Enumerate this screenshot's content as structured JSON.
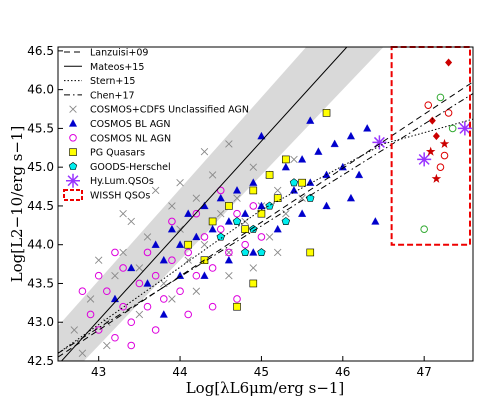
{
  "chart_data": {
    "type": "scatter",
    "title": "",
    "xlabel": "Log[λL6μm/erg s−1]",
    "ylabel": "Log[L2−10/erg s−1]",
    "xlim": [
      42.5,
      47.6
    ],
    "ylim": [
      42.5,
      46.55
    ],
    "xticks": [
      "43",
      "44",
      "45",
      "46",
      "47"
    ],
    "yticks": [
      "42.5",
      "43.0",
      "43.5",
      "44.0",
      "44.5",
      "45.0",
      "45.5",
      "46.0",
      "46.5"
    ],
    "grid": false,
    "legend_placement": "top-left",
    "relations": [
      {
        "name": "Lanzuisi+09",
        "style": "dashed",
        "points": [
          [
            42.5,
            42.55
          ],
          [
            47.6,
            46.1
          ]
        ]
      },
      {
        "name": "Mateos+15",
        "style": "solid",
        "points": [
          [
            42.5,
            42.45
          ],
          [
            46.05,
            46.55
          ]
        ]
      },
      {
        "name": "Stern+15",
        "style": "dotted",
        "points": [
          [
            42.5,
            42.6
          ],
          [
            45.0,
            44.45
          ],
          [
            46.5,
            45.3
          ],
          [
            47.6,
            45.62
          ]
        ]
      },
      {
        "name": "Chen+17",
        "style": "dashdot",
        "points": [
          [
            42.5,
            42.6
          ],
          [
            47.6,
            45.95
          ]
        ]
      }
    ],
    "band": {
      "points": [
        [
          42.5,
          42.15
        ],
        [
          46.5,
          46.55
        ],
        [
          45.55,
          46.55
        ],
        [
          42.5,
          42.95
        ]
      ]
    },
    "series": [
      {
        "name": "COSMOS+CDFS Unclassified AGN",
        "marker": "x",
        "color": "#888888",
        "points": [
          [
            42.7,
            42.9
          ],
          [
            42.9,
            43.3
          ],
          [
            43.1,
            43.0
          ],
          [
            43.2,
            43.6
          ],
          [
            43.3,
            43.9
          ],
          [
            43.5,
            43.7
          ],
          [
            43.4,
            44.3
          ],
          [
            43.6,
            44.1
          ],
          [
            43.8,
            43.5
          ],
          [
            43.9,
            44.5
          ],
          [
            44.0,
            44.2
          ],
          [
            44.1,
            43.8
          ],
          [
            44.2,
            44.6
          ],
          [
            44.3,
            44.0
          ],
          [
            44.4,
            44.9
          ],
          [
            44.5,
            44.4
          ],
          [
            44.6,
            43.9
          ],
          [
            44.7,
            44.6
          ],
          [
            44.8,
            44.3
          ],
          [
            44.9,
            45.0
          ],
          [
            45.0,
            44.5
          ],
          [
            45.1,
            44.1
          ],
          [
            45.2,
            44.7
          ],
          [
            45.3,
            44.4
          ],
          [
            45.4,
            45.1
          ],
          [
            45.5,
            44.6
          ],
          [
            43.0,
            43.8
          ],
          [
            43.3,
            44.4
          ],
          [
            43.7,
            44.7
          ],
          [
            44.0,
            44.8
          ],
          [
            44.3,
            45.2
          ],
          [
            44.6,
            45.3
          ],
          [
            42.8,
            42.6
          ],
          [
            43.1,
            42.7
          ],
          [
            43.5,
            43.1
          ],
          [
            43.9,
            43.3
          ],
          [
            44.2,
            43.4
          ],
          [
            44.6,
            43.6
          ],
          [
            44.9,
            43.7
          ],
          [
            45.2,
            43.9
          ]
        ]
      },
      {
        "name": "COSMOS BL AGN",
        "marker": "triangle",
        "color": "#0000cc",
        "points": [
          [
            43.2,
            43.3
          ],
          [
            43.4,
            43.7
          ],
          [
            43.6,
            43.5
          ],
          [
            43.7,
            44.0
          ],
          [
            43.8,
            43.8
          ],
          [
            43.9,
            44.2
          ],
          [
            44.0,
            44.0
          ],
          [
            44.1,
            44.4
          ],
          [
            44.2,
            44.1
          ],
          [
            44.3,
            44.5
          ],
          [
            44.4,
            44.2
          ],
          [
            44.5,
            44.6
          ],
          [
            44.6,
            44.3
          ],
          [
            44.7,
            44.7
          ],
          [
            44.8,
            44.4
          ],
          [
            44.9,
            44.8
          ],
          [
            45.0,
            44.5
          ],
          [
            45.1,
            44.9
          ],
          [
            45.2,
            44.6
          ],
          [
            45.3,
            45.0
          ],
          [
            45.4,
            44.7
          ],
          [
            45.5,
            45.1
          ],
          [
            45.6,
            44.8
          ],
          [
            45.7,
            45.2
          ],
          [
            45.8,
            44.9
          ],
          [
            45.9,
            45.3
          ],
          [
            46.0,
            45.0
          ],
          [
            46.1,
            45.4
          ],
          [
            46.2,
            44.9
          ],
          [
            46.3,
            45.5
          ],
          [
            44.3,
            43.6
          ],
          [
            44.6,
            43.8
          ],
          [
            44.9,
            43.9
          ],
          [
            45.2,
            44.2
          ],
          [
            45.5,
            44.4
          ],
          [
            45.8,
            44.5
          ],
          [
            46.1,
            44.6
          ],
          [
            46.4,
            44.3
          ],
          [
            45.0,
            45.4
          ],
          [
            45.6,
            45.6
          ],
          [
            44.0,
            43.6
          ],
          [
            43.8,
            43.1
          ]
        ]
      },
      {
        "name": "COSMOS NL AGN",
        "marker": "circle",
        "color": "#dd00dd",
        "points": [
          [
            42.9,
            43.1
          ],
          [
            43.0,
            42.9
          ],
          [
            43.1,
            43.4
          ],
          [
            43.2,
            42.8
          ],
          [
            43.3,
            43.2
          ],
          [
            43.4,
            43.0
          ],
          [
            43.5,
            43.5
          ],
          [
            43.6,
            43.2
          ],
          [
            43.7,
            43.6
          ],
          [
            43.8,
            43.3
          ],
          [
            43.9,
            43.8
          ],
          [
            44.0,
            43.4
          ],
          [
            44.1,
            43.9
          ],
          [
            44.2,
            43.6
          ],
          [
            44.3,
            44.1
          ],
          [
            44.4,
            43.7
          ],
          [
            44.5,
            44.2
          ],
          [
            44.6,
            43.9
          ],
          [
            44.7,
            44.4
          ],
          [
            44.8,
            44.0
          ],
          [
            44.9,
            44.5
          ],
          [
            45.0,
            44.1
          ],
          [
            43.3,
            43.7
          ],
          [
            43.6,
            43.9
          ],
          [
            43.9,
            44.3
          ],
          [
            44.2,
            44.4
          ],
          [
            44.5,
            44.7
          ],
          [
            43.0,
            43.6
          ],
          [
            43.4,
            42.7
          ],
          [
            43.7,
            42.9
          ],
          [
            44.1,
            43.1
          ],
          [
            44.4,
            43.2
          ],
          [
            44.7,
            43.3
          ],
          [
            43.2,
            43.9
          ],
          [
            42.8,
            43.4
          ]
        ]
      },
      {
        "name": "PG Quasars",
        "marker": "square",
        "color": "#ffff00",
        "points": [
          [
            44.1,
            44.0
          ],
          [
            44.3,
            43.8
          ],
          [
            44.4,
            44.3
          ],
          [
            44.6,
            44.5
          ],
          [
            44.8,
            44.2
          ],
          [
            44.9,
            44.7
          ],
          [
            45.0,
            44.4
          ],
          [
            45.1,
            44.9
          ],
          [
            45.2,
            44.6
          ],
          [
            45.3,
            45.1
          ],
          [
            45.5,
            44.8
          ],
          [
            45.8,
            45.7
          ],
          [
            45.6,
            43.9
          ],
          [
            44.7,
            43.2
          ],
          [
            44.9,
            43.5
          ]
        ]
      },
      {
        "name": "GOODS-Herschel",
        "marker": "pentagon",
        "color": "#00eeee",
        "points": [
          [
            44.5,
            44.1
          ],
          [
            44.7,
            44.3
          ],
          [
            44.9,
            44.2
          ],
          [
            45.1,
            44.5
          ],
          [
            45.3,
            44.3
          ],
          [
            45.0,
            43.9
          ],
          [
            45.4,
            44.8
          ],
          [
            44.8,
            43.9
          ],
          [
            45.6,
            44.6
          ]
        ]
      },
      {
        "name": "Hy.Lum.QSOs",
        "marker": "asterisk",
        "color": "#9933ff",
        "points": [
          [
            46.45,
            45.32
          ],
          [
            47.0,
            45.1
          ],
          [
            47.5,
            45.5
          ]
        ]
      },
      {
        "name": "WISSH QSOs",
        "marker": "mixed",
        "color": "#cc0000",
        "points": [
          [
            47.05,
            45.8
          ],
          [
            47.1,
            45.6
          ],
          [
            47.2,
            45.9
          ],
          [
            47.25,
            45.3
          ],
          [
            47.3,
            45.7
          ],
          [
            47.15,
            45.4
          ],
          [
            47.35,
            45.5
          ],
          [
            47.08,
            45.2
          ],
          [
            47.2,
            45.0
          ],
          [
            47.3,
            46.35
          ],
          [
            47.0,
            44.2
          ],
          [
            47.15,
            44.85
          ],
          [
            47.25,
            45.15
          ]
        ]
      }
    ],
    "wissh_region": {
      "x": [
        46.6,
        47.6
      ],
      "y": [
        44.0,
        46.55
      ]
    }
  }
}
